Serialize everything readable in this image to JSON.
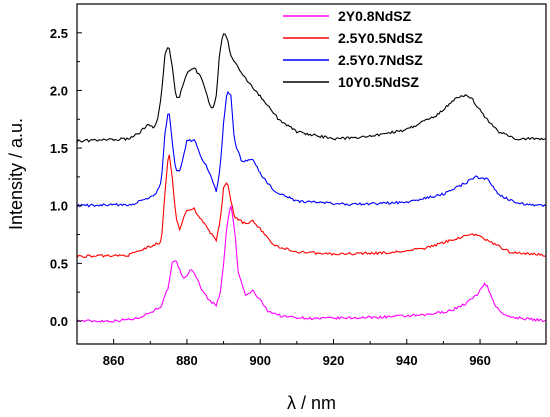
{
  "chart_data": {
    "type": "line",
    "xlabel": "λ / nm",
    "ylabel": "Intensity / a.u.",
    "xlim": [
      850,
      978
    ],
    "ylim": [
      -0.2,
      2.75
    ],
    "x_ticks": [
      860,
      880,
      900,
      920,
      940,
      960
    ],
    "y_ticks": [
      0.0,
      0.5,
      1.0,
      1.5,
      2.0,
      2.5
    ],
    "x_tick_labels": [
      "860",
      "880",
      "900",
      "920",
      "940",
      "960"
    ],
    "y_tick_labels": [
      "0.0",
      "0.5",
      "1.0",
      "1.5",
      "2.0",
      "2.5"
    ],
    "grid": false,
    "legend_position": "top-right",
    "series": [
      {
        "name": "2Y0.8NdSZ",
        "color": "#ff00ff",
        "points": [
          [
            850,
            0.0
          ],
          [
            860,
            0.0
          ],
          [
            866,
            0.02
          ],
          [
            869,
            0.06
          ],
          [
            871,
            0.09
          ],
          [
            873,
            0.13
          ],
          [
            875,
            0.3
          ],
          [
            876,
            0.5
          ],
          [
            877,
            0.52
          ],
          [
            878,
            0.45
          ],
          [
            879,
            0.36
          ],
          [
            880,
            0.4
          ],
          [
            881,
            0.44
          ],
          [
            882,
            0.42
          ],
          [
            884,
            0.28
          ],
          [
            886,
            0.18
          ],
          [
            888,
            0.14
          ],
          [
            889,
            0.22
          ],
          [
            890,
            0.5
          ],
          [
            891,
            0.85
          ],
          [
            892,
            1.0
          ],
          [
            893,
            0.8
          ],
          [
            894,
            0.42
          ],
          [
            896,
            0.22
          ],
          [
            898,
            0.26
          ],
          [
            900,
            0.18
          ],
          [
            902,
            0.09
          ],
          [
            906,
            0.04
          ],
          [
            915,
            0.02
          ],
          [
            930,
            0.03
          ],
          [
            945,
            0.05
          ],
          [
            952,
            0.09
          ],
          [
            956,
            0.15
          ],
          [
            959,
            0.22
          ],
          [
            961,
            0.32
          ],
          [
            962,
            0.3
          ],
          [
            964,
            0.14
          ],
          [
            967,
            0.04
          ],
          [
            978,
            0.0
          ]
        ]
      },
      {
        "name": "2.5Y0.5NdSZ",
        "color": "#ff0000",
        "points": [
          [
            850,
            0.56
          ],
          [
            864,
            0.57
          ],
          [
            868,
            0.62
          ],
          [
            871,
            0.66
          ],
          [
            873,
            0.68
          ],
          [
            874,
            1.1
          ],
          [
            875,
            1.48
          ],
          [
            876,
            1.25
          ],
          [
            877,
            0.9
          ],
          [
            878,
            0.8
          ],
          [
            880,
            0.96
          ],
          [
            882,
            0.97
          ],
          [
            884,
            0.88
          ],
          [
            886,
            0.78
          ],
          [
            888,
            0.7
          ],
          [
            889,
            0.85
          ],
          [
            890,
            1.15
          ],
          [
            891,
            1.2
          ],
          [
            892,
            1.05
          ],
          [
            893,
            0.9
          ],
          [
            896,
            0.84
          ],
          [
            898,
            0.87
          ],
          [
            900,
            0.8
          ],
          [
            904,
            0.65
          ],
          [
            910,
            0.6
          ],
          [
            920,
            0.58
          ],
          [
            935,
            0.59
          ],
          [
            945,
            0.63
          ],
          [
            952,
            0.7
          ],
          [
            957,
            0.75
          ],
          [
            960,
            0.74
          ],
          [
            963,
            0.68
          ],
          [
            968,
            0.6
          ],
          [
            978,
            0.57
          ]
        ]
      },
      {
        "name": "2.5Y0.7NdSZ",
        "color": "#0000ff",
        "points": [
          [
            850,
            1.0
          ],
          [
            865,
            1.01
          ],
          [
            868,
            1.05
          ],
          [
            871,
            1.08
          ],
          [
            873,
            1.2
          ],
          [
            874,
            1.62
          ],
          [
            875,
            1.85
          ],
          [
            876,
            1.55
          ],
          [
            877,
            1.3
          ],
          [
            878,
            1.3
          ],
          [
            880,
            1.56
          ],
          [
            882,
            1.57
          ],
          [
            884,
            1.42
          ],
          [
            886,
            1.3
          ],
          [
            888,
            1.12
          ],
          [
            889,
            1.3
          ],
          [
            890,
            1.72
          ],
          [
            891,
            2.0
          ],
          [
            892,
            1.95
          ],
          [
            893,
            1.55
          ],
          [
            895,
            1.38
          ],
          [
            898,
            1.4
          ],
          [
            900,
            1.28
          ],
          [
            904,
            1.12
          ],
          [
            910,
            1.04
          ],
          [
            925,
            1.01
          ],
          [
            940,
            1.03
          ],
          [
            950,
            1.1
          ],
          [
            955,
            1.18
          ],
          [
            959,
            1.25
          ],
          [
            962,
            1.23
          ],
          [
            965,
            1.1
          ],
          [
            970,
            1.02
          ],
          [
            978,
            1.0
          ]
        ]
      },
      {
        "name": "10Y0.5NdSZ",
        "color": "#000000",
        "points": [
          [
            850,
            1.56
          ],
          [
            864,
            1.58
          ],
          [
            867,
            1.63
          ],
          [
            869,
            1.7
          ],
          [
            871,
            1.68
          ],
          [
            872,
            1.75
          ],
          [
            873,
            1.95
          ],
          [
            874,
            2.3
          ],
          [
            875,
            2.4
          ],
          [
            876,
            2.2
          ],
          [
            877,
            1.95
          ],
          [
            878,
            1.95
          ],
          [
            880,
            2.15
          ],
          [
            882,
            2.2
          ],
          [
            884,
            2.1
          ],
          [
            886,
            1.9
          ],
          [
            887,
            1.83
          ],
          [
            888,
            1.95
          ],
          [
            889,
            2.35
          ],
          [
            890,
            2.5
          ],
          [
            891,
            2.45
          ],
          [
            892,
            2.3
          ],
          [
            894,
            2.2
          ],
          [
            896,
            2.1
          ],
          [
            900,
            1.95
          ],
          [
            905,
            1.75
          ],
          [
            910,
            1.64
          ],
          [
            920,
            1.58
          ],
          [
            930,
            1.6
          ],
          [
            940,
            1.66
          ],
          [
            948,
            1.78
          ],
          [
            953,
            1.92
          ],
          [
            956,
            1.96
          ],
          [
            958,
            1.92
          ],
          [
            961,
            1.78
          ],
          [
            965,
            1.64
          ],
          [
            970,
            1.58
          ],
          [
            978,
            1.58
          ]
        ]
      }
    ]
  }
}
